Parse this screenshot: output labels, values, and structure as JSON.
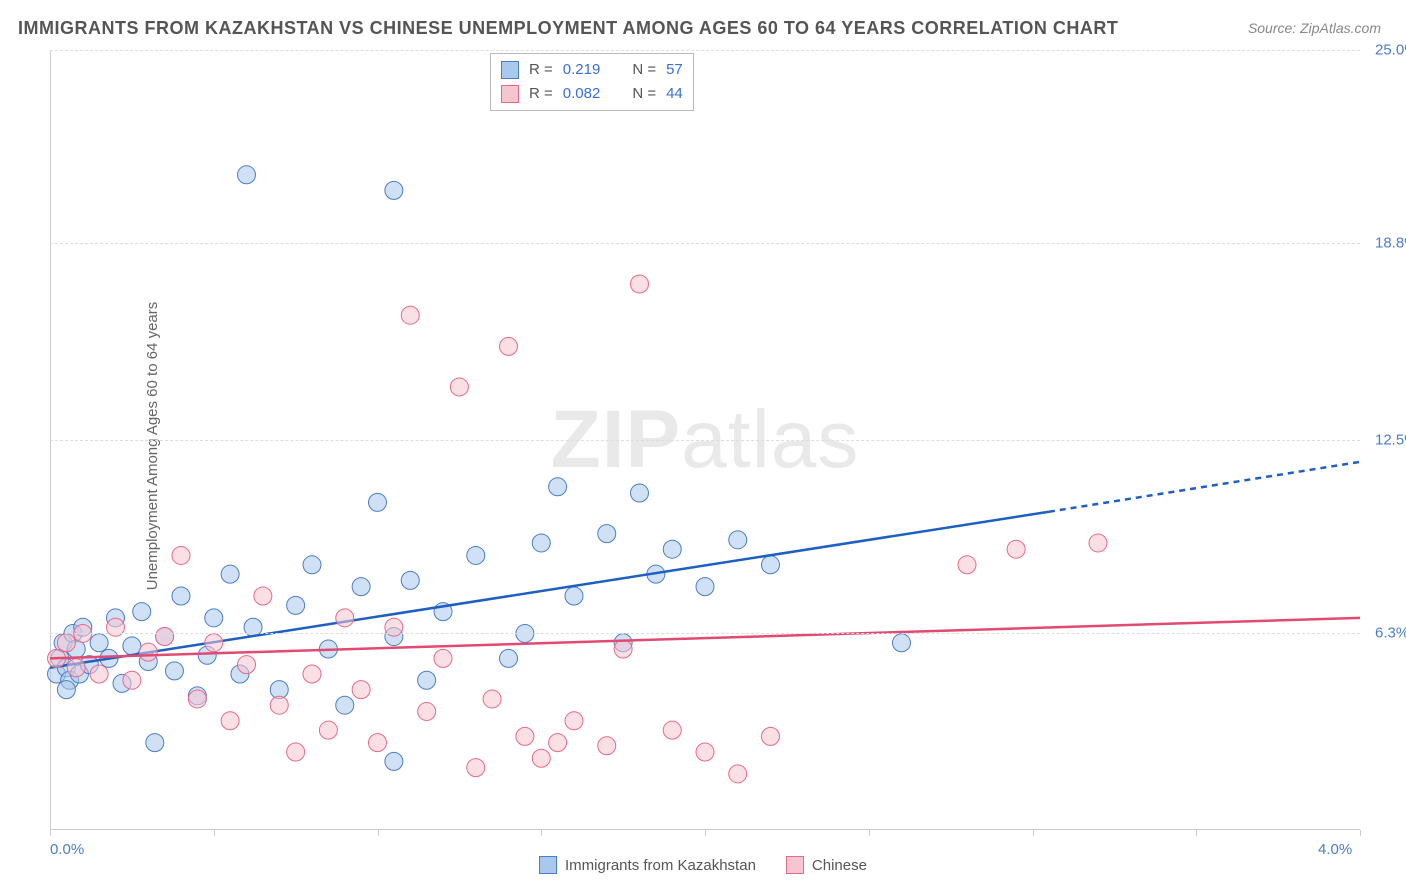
{
  "title": "IMMIGRANTS FROM KAZAKHSTAN VS CHINESE UNEMPLOYMENT AMONG AGES 60 TO 64 YEARS CORRELATION CHART",
  "source_label": "Source: ZipAtlas.com",
  "y_axis_label": "Unemployment Among Ages 60 to 64 years",
  "watermark_zip": "ZIP",
  "watermark_atlas": "atlas",
  "chart": {
    "type": "scatter",
    "background_color": "#ffffff",
    "grid_color": "#dddddd",
    "axis_color": "#cccccc",
    "xlim": [
      0.0,
      4.0
    ],
    "ylim": [
      0.0,
      25.0
    ],
    "x_ticks": [
      0.0,
      0.5,
      1.0,
      1.5,
      2.0,
      2.5,
      3.0,
      3.5,
      4.0
    ],
    "x_tick_labels_shown": {
      "0": "0.0%",
      "8": "4.0%"
    },
    "y_ticks": [
      6.3,
      12.5,
      18.8,
      25.0
    ],
    "y_tick_labels": [
      "6.3%",
      "12.5%",
      "18.8%",
      "25.0%"
    ],
    "marker_radius": 9,
    "marker_opacity": 0.55,
    "series": [
      {
        "name": "Immigrants from Kazakhstan",
        "color_fill": "#a9c8ed",
        "color_stroke": "#4a7ec9",
        "r_value": "0.219",
        "n_value": "57",
        "trendline": {
          "x1": 0.0,
          "y1": 5.2,
          "x2": 3.05,
          "y2": 10.2,
          "extend_x2": 4.0,
          "extend_y2": 11.8,
          "color": "#1e5fc4",
          "width": 2.5,
          "dash_extend": "6,5"
        },
        "points": [
          [
            0.02,
            5.0
          ],
          [
            0.03,
            5.5
          ],
          [
            0.04,
            6.0
          ],
          [
            0.05,
            5.2
          ],
          [
            0.06,
            4.8
          ],
          [
            0.07,
            6.3
          ],
          [
            0.08,
            5.8
          ],
          [
            0.09,
            5.0
          ],
          [
            0.1,
            6.5
          ],
          [
            0.12,
            5.3
          ],
          [
            0.05,
            4.5
          ],
          [
            0.15,
            6.0
          ],
          [
            0.18,
            5.5
          ],
          [
            0.2,
            6.8
          ],
          [
            0.22,
            4.7
          ],
          [
            0.25,
            5.9
          ],
          [
            0.28,
            7.0
          ],
          [
            0.3,
            5.4
          ],
          [
            0.32,
            2.8
          ],
          [
            0.35,
            6.2
          ],
          [
            0.38,
            5.1
          ],
          [
            0.4,
            7.5
          ],
          [
            0.45,
            4.3
          ],
          [
            0.5,
            6.8
          ],
          [
            0.55,
            8.2
          ],
          [
            0.58,
            5.0
          ],
          [
            0.6,
            21.0
          ],
          [
            0.62,
            6.5
          ],
          [
            0.7,
            4.5
          ],
          [
            0.75,
            7.2
          ],
          [
            0.8,
            8.5
          ],
          [
            0.85,
            5.8
          ],
          [
            0.9,
            4.0
          ],
          [
            0.95,
            7.8
          ],
          [
            1.0,
            10.5
          ],
          [
            1.05,
            6.2
          ],
          [
            1.05,
            20.5
          ],
          [
            1.1,
            8.0
          ],
          [
            1.15,
            4.8
          ],
          [
            1.2,
            7.0
          ],
          [
            1.05,
            2.2
          ],
          [
            1.3,
            8.8
          ],
          [
            1.4,
            5.5
          ],
          [
            1.5,
            9.2
          ],
          [
            1.55,
            11.0
          ],
          [
            1.6,
            7.5
          ],
          [
            1.7,
            9.5
          ],
          [
            1.75,
            6.0
          ],
          [
            1.8,
            10.8
          ],
          [
            1.85,
            8.2
          ],
          [
            1.9,
            9.0
          ],
          [
            2.0,
            7.8
          ],
          [
            2.1,
            9.3
          ],
          [
            2.2,
            8.5
          ],
          [
            2.6,
            6.0
          ],
          [
            1.45,
            6.3
          ],
          [
            0.48,
            5.6
          ]
        ]
      },
      {
        "name": "Chinese",
        "color_fill": "#f5c5d0",
        "color_stroke": "#e86a8a",
        "r_value": "0.082",
        "n_value": "44",
        "trendline": {
          "x1": 0.0,
          "y1": 5.5,
          "x2": 4.0,
          "y2": 6.8,
          "color": "#e14a72",
          "width": 2.5
        },
        "points": [
          [
            0.02,
            5.5
          ],
          [
            0.05,
            6.0
          ],
          [
            0.08,
            5.2
          ],
          [
            0.1,
            6.3
          ],
          [
            0.15,
            5.0
          ],
          [
            0.2,
            6.5
          ],
          [
            0.25,
            4.8
          ],
          [
            0.3,
            5.7
          ],
          [
            0.35,
            6.2
          ],
          [
            0.4,
            8.8
          ],
          [
            0.45,
            4.2
          ],
          [
            0.5,
            6.0
          ],
          [
            0.55,
            3.5
          ],
          [
            0.6,
            5.3
          ],
          [
            0.65,
            7.5
          ],
          [
            0.7,
            4.0
          ],
          [
            0.75,
            2.5
          ],
          [
            0.8,
            5.0
          ],
          [
            0.85,
            3.2
          ],
          [
            0.9,
            6.8
          ],
          [
            0.95,
            4.5
          ],
          [
            1.0,
            2.8
          ],
          [
            1.1,
            16.5
          ],
          [
            1.15,
            3.8
          ],
          [
            1.2,
            5.5
          ],
          [
            1.25,
            14.2
          ],
          [
            1.3,
            2.0
          ],
          [
            1.35,
            4.2
          ],
          [
            1.4,
            15.5
          ],
          [
            1.45,
            3.0
          ],
          [
            1.5,
            2.3
          ],
          [
            1.6,
            3.5
          ],
          [
            1.7,
            2.7
          ],
          [
            1.75,
            5.8
          ],
          [
            1.8,
            17.5
          ],
          [
            1.9,
            3.2
          ],
          [
            2.0,
            2.5
          ],
          [
            2.1,
            1.8
          ],
          [
            2.2,
            3.0
          ],
          [
            2.8,
            8.5
          ],
          [
            2.95,
            9.0
          ],
          [
            3.2,
            9.2
          ],
          [
            1.55,
            2.8
          ],
          [
            1.05,
            6.5
          ]
        ]
      }
    ],
    "legend_top": {
      "r_label": "R  =",
      "n_label": "N  ="
    },
    "legend_bottom": [
      {
        "label": "Immigrants from Kazakhstan",
        "fill": "#a9c8ed",
        "stroke": "#4a7ec9"
      },
      {
        "label": "Chinese",
        "fill": "#f5c5d0",
        "stroke": "#e86a8a"
      }
    ]
  }
}
